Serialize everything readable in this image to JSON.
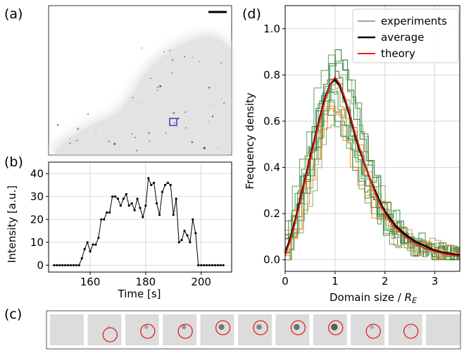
{
  "panel_labels": {
    "a": "(a)",
    "b": "(b)",
    "c": "(c)",
    "d": "(d)"
  },
  "colors": {
    "average": "#000000",
    "theory": "#e8221a",
    "experiments_greens": [
      "#1b6b2e",
      "#2f8a3e",
      "#4f9a4a",
      "#6f9b4a",
      "#3a7d3a",
      "#8aa65a"
    ],
    "experiments_oranges": [
      "#ef7d1f",
      "#f08a2a"
    ],
    "roi_box": "#2020c0",
    "circle": "#e0201c"
  },
  "chart_data": [
    {
      "type": "line",
      "panel": "(b)",
      "xlabel": "Time [s]",
      "ylabel": "Intensity [a.u.]",
      "xlim": [
        145,
        211
      ],
      "ylim": [
        -3,
        45
      ],
      "xticks": [
        160,
        180,
        200
      ],
      "yticks": [
        0,
        10,
        20,
        30,
        40
      ],
      "grid": true,
      "x": [
        148,
        149,
        150,
        151,
        152,
        153,
        154,
        155,
        156,
        157,
        158,
        159,
        160,
        161,
        162,
        163,
        164,
        165,
        166,
        167,
        168,
        169,
        170,
        171,
        172,
        173,
        174,
        175,
        176,
        177,
        178,
        179,
        180,
        181,
        182,
        183,
        184,
        185,
        186,
        187,
        188,
        189,
        190,
        191,
        192,
        193,
        194,
        195,
        196,
        197,
        198,
        199,
        200,
        201,
        202,
        203,
        204,
        205,
        206,
        207,
        208
      ],
      "y": [
        0,
        0,
        0,
        0,
        0,
        0,
        0,
        0,
        0,
        2,
        7,
        10,
        6,
        9,
        9,
        12,
        20,
        20,
        23,
        23,
        30,
        30,
        29,
        26,
        29,
        31,
        26,
        27,
        24,
        29,
        25,
        21,
        26,
        31,
        27,
        26,
        21,
        29,
        22,
        25,
        38,
        35,
        36,
        27,
        22,
        32,
        35,
        36,
        35,
        22,
        29,
        10,
        11,
        15,
        13,
        10,
        20,
        14,
        10,
        0,
        0
      ],
      "x_full": [
        147,
        148,
        149,
        150,
        151,
        152,
        153,
        154,
        155,
        156,
        157,
        158,
        159,
        160,
        161,
        162,
        163,
        164,
        165,
        166,
        167,
        168,
        169,
        170,
        171,
        172,
        173,
        174,
        175,
        176,
        177,
        178,
        179,
        180,
        181,
        182,
        183,
        184,
        185,
        186,
        187,
        188,
        189,
        190,
        191,
        192,
        193,
        194,
        195,
        196,
        197,
        198,
        199,
        200,
        201,
        202,
        203,
        204,
        205,
        206,
        207,
        208
      ],
      "y_full": [
        0,
        0,
        0,
        0,
        0,
        0,
        0,
        0,
        0,
        0,
        3,
        7,
        10,
        6,
        9,
        9,
        12,
        20,
        20,
        23,
        23,
        30,
        30,
        29,
        26,
        29,
        31,
        26,
        27,
        24,
        29,
        25,
        21,
        26,
        38,
        35,
        36,
        27,
        22,
        32,
        35,
        36,
        35,
        22,
        29,
        10,
        11,
        15,
        13,
        10,
        20,
        14,
        0,
        0,
        0,
        0,
        0,
        0,
        0,
        0,
        0,
        0
      ]
    },
    {
      "type": "line",
      "panel": "(d)",
      "xlabel": "Domain size / R_E",
      "ylabel": "Frequency density",
      "xlim": [
        0,
        3.5
      ],
      "ylim": [
        -0.05,
        1.1
      ],
      "xticks": [
        0,
        1,
        2,
        3
      ],
      "yticks": [
        0.0,
        0.2,
        0.4,
        0.6,
        0.8,
        1.0
      ],
      "grid": true,
      "legend": {
        "position": "top-right",
        "entries": [
          "experiments",
          "average",
          "theory"
        ]
      },
      "series": [
        {
          "name": "theory",
          "x": [
            0,
            0.1,
            0.2,
            0.3,
            0.4,
            0.5,
            0.6,
            0.7,
            0.8,
            0.9,
            1.0,
            1.1,
            1.2,
            1.3,
            1.4,
            1.5,
            1.6,
            1.7,
            1.8,
            1.9,
            2.0,
            2.2,
            2.4,
            2.6,
            2.8,
            3.0,
            3.2,
            3.5
          ],
          "y": [
            0.02,
            0.08,
            0.16,
            0.25,
            0.34,
            0.43,
            0.52,
            0.61,
            0.69,
            0.76,
            0.79,
            0.76,
            0.7,
            0.63,
            0.55,
            0.48,
            0.41,
            0.35,
            0.29,
            0.24,
            0.2,
            0.14,
            0.1,
            0.07,
            0.05,
            0.035,
            0.025,
            0.015
          ]
        },
        {
          "name": "average",
          "x": [
            0,
            0.1,
            0.2,
            0.3,
            0.4,
            0.5,
            0.6,
            0.7,
            0.8,
            0.9,
            1.0,
            1.1,
            1.2,
            1.3,
            1.4,
            1.5,
            1.6,
            1.7,
            1.8,
            1.9,
            2.0,
            2.2,
            2.4,
            2.6,
            2.8,
            3.0,
            3.2,
            3.5
          ],
          "y": [
            0.03,
            0.09,
            0.17,
            0.26,
            0.35,
            0.44,
            0.53,
            0.62,
            0.7,
            0.76,
            0.78,
            0.75,
            0.69,
            0.62,
            0.54,
            0.47,
            0.41,
            0.35,
            0.3,
            0.25,
            0.21,
            0.15,
            0.11,
            0.08,
            0.06,
            0.04,
            0.03,
            0.02
          ]
        }
      ]
    }
  ],
  "panel_c": {
    "frames": 11,
    "circled_frames": [
      1,
      2,
      3,
      4,
      5,
      6,
      7,
      8,
      9
    ]
  }
}
